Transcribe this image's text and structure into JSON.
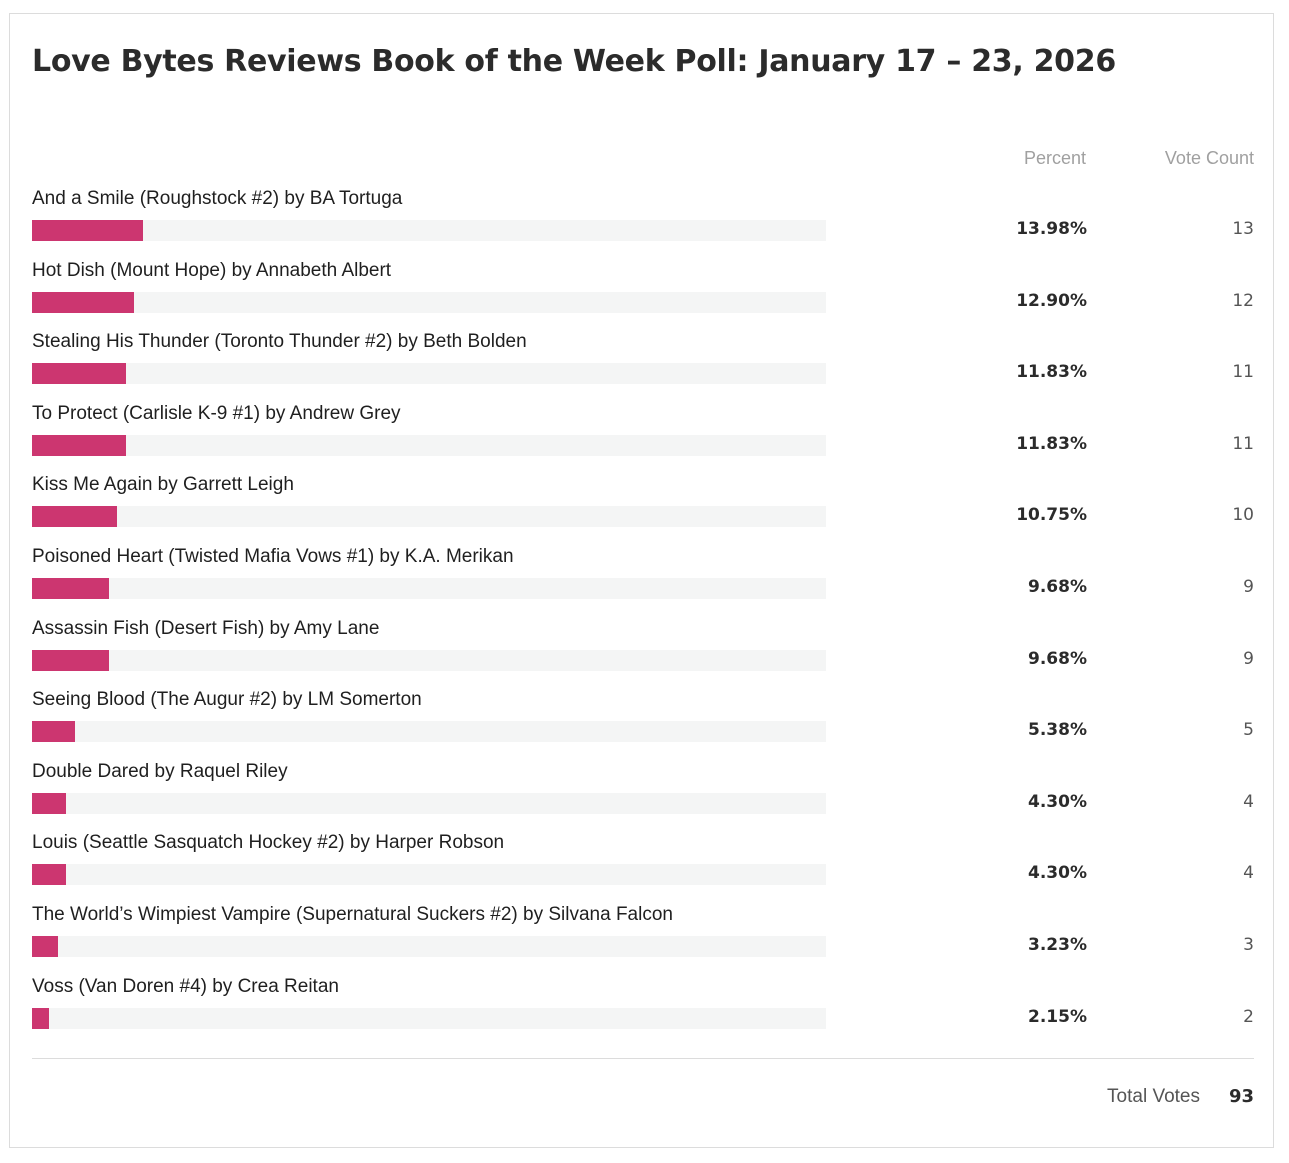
{
  "poll": {
    "title": "Love Bytes Reviews Book of the Week Poll: January 17 – 23, 2026",
    "headers": {
      "percent": "Percent",
      "votes": "Vote Count"
    },
    "bar_color": "#cc3670",
    "answers": [
      {
        "label": "And a Smile (Roughstock #2) by BA Tortuga",
        "percent_text": "13.98%",
        "percent": 13.98,
        "votes": "13"
      },
      {
        "label": "Hot Dish (Mount Hope) by Annabeth Albert",
        "percent_text": "12.90%",
        "percent": 12.9,
        "votes": "12"
      },
      {
        "label": "Stealing His Thunder (Toronto Thunder #2) by Beth Bolden",
        "percent_text": "11.83%",
        "percent": 11.83,
        "votes": "11"
      },
      {
        "label": "To Protect (Carlisle K-9 #1) by Andrew Grey",
        "percent_text": "11.83%",
        "percent": 11.83,
        "votes": "11"
      },
      {
        "label": "Kiss Me Again by Garrett Leigh",
        "percent_text": "10.75%",
        "percent": 10.75,
        "votes": "10"
      },
      {
        "label": "Poisoned Heart (Twisted Mafia Vows #1) by K.A. Merikan",
        "percent_text": "9.68%",
        "percent": 9.68,
        "votes": "9"
      },
      {
        "label": "Assassin Fish (Desert Fish) by Amy Lane",
        "percent_text": "9.68%",
        "percent": 9.68,
        "votes": "9"
      },
      {
        "label": "Seeing Blood (The Augur #2) by LM Somerton",
        "percent_text": "5.38%",
        "percent": 5.38,
        "votes": "5"
      },
      {
        "label": "Double Dared by Raquel Riley",
        "percent_text": "4.30%",
        "percent": 4.3,
        "votes": "4"
      },
      {
        "label": "Louis (Seattle Sasquatch Hockey #2) by Harper Robson",
        "percent_text": "4.30%",
        "percent": 4.3,
        "votes": "4"
      },
      {
        "label": "The World’s Wimpiest Vampire (Supernatural Suckers #2) by Silvana Falcon",
        "percent_text": "3.23%",
        "percent": 3.23,
        "votes": "3"
      },
      {
        "label": "Voss (Van Doren #4) by Crea Reitan",
        "percent_text": "2.15%",
        "percent": 2.15,
        "votes": "2"
      }
    ],
    "total_label": "Total Votes",
    "total_value": "93"
  }
}
